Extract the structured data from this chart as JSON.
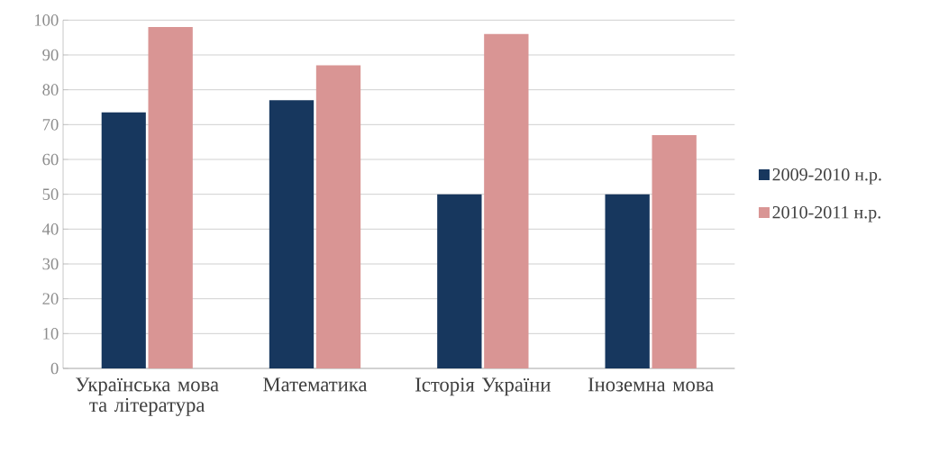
{
  "chart_data": {
    "type": "bar",
    "categories": [
      "Українська мова та література",
      "Математика",
      "Історія України",
      "Іноземна мова"
    ],
    "series": [
      {
        "name": "2009-2010 н.р.",
        "color": "#17375e",
        "values": [
          73.5,
          77,
          50,
          50
        ]
      },
      {
        "name": "2010-2011 н.р.",
        "color": "#d99594",
        "values": [
          98,
          87,
          96,
          67
        ]
      }
    ],
    "ylim": [
      0,
      100
    ],
    "yticks": [
      0,
      10,
      20,
      30,
      40,
      50,
      60,
      70,
      80,
      90,
      100
    ],
    "grid": "y",
    "legend": "right"
  }
}
